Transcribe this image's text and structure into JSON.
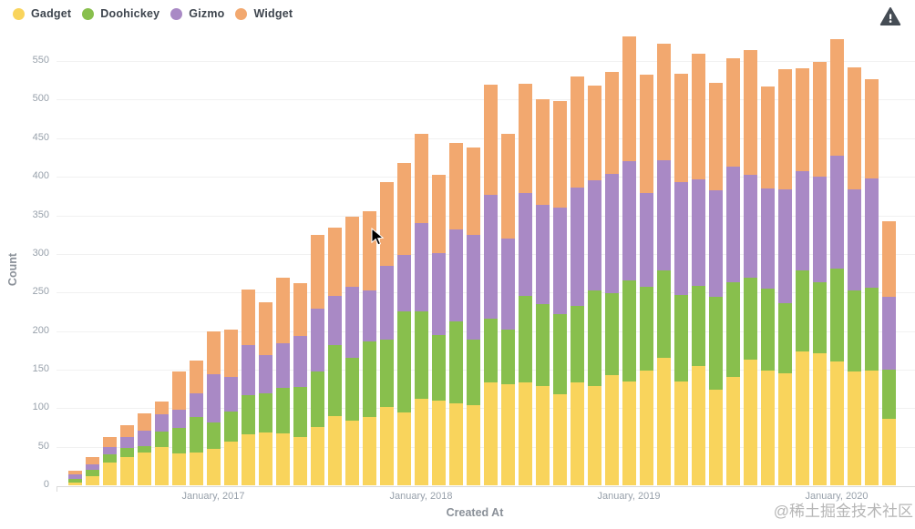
{
  "legend": {
    "items": [
      {
        "label": "Gadget",
        "color": "#F9D45C"
      },
      {
        "label": "Doohickey",
        "color": "#88BF4D"
      },
      {
        "label": "Gizmo",
        "color": "#A989C5"
      },
      {
        "label": "Widget",
        "color": "#F2A86F"
      }
    ]
  },
  "header": {
    "warning_icon": "alert-triangle",
    "warning_color": "#454C54"
  },
  "watermark": "@稀土掘金技术社区",
  "chart_data": {
    "type": "bar",
    "stacked": true,
    "title": "",
    "xlabel": "Created At",
    "ylabel": "Count",
    "ylim": [
      0,
      583
    ],
    "yticks": [
      0,
      50,
      100,
      150,
      200,
      250,
      300,
      350,
      400,
      450,
      500,
      550
    ],
    "grid": "faint-horizontal",
    "legend_position": "top-left",
    "categories": [
      "2016-05",
      "2016-06",
      "2016-07",
      "2016-08",
      "2016-09",
      "2016-10",
      "2016-11",
      "2016-12",
      "2017-01",
      "2017-02",
      "2017-03",
      "2017-04",
      "2017-05",
      "2017-06",
      "2017-07",
      "2017-08",
      "2017-09",
      "2017-10",
      "2017-11",
      "2017-12",
      "2018-01",
      "2018-02",
      "2018-03",
      "2018-04",
      "2018-05",
      "2018-06",
      "2018-07",
      "2018-08",
      "2018-09",
      "2018-10",
      "2018-11",
      "2018-12",
      "2019-01",
      "2019-02",
      "2019-03",
      "2019-04",
      "2019-05",
      "2019-06",
      "2019-07",
      "2019-08",
      "2019-09",
      "2019-10",
      "2019-11",
      "2019-12",
      "2020-01",
      "2020-02",
      "2020-03",
      "2020-04"
    ],
    "x_tick_labels": [
      "January, 2017",
      "January, 2018",
      "January, 2019",
      "January, 2020"
    ],
    "x_tick_indices": [
      8,
      20,
      32,
      44
    ],
    "series": [
      {
        "name": "Gadget",
        "color": "#F9D45C",
        "values": [
          3,
          12,
          29,
          37,
          42,
          50,
          41,
          43,
          47,
          57,
          66,
          68,
          67,
          63,
          76,
          90,
          84,
          89,
          102,
          94,
          112,
          110,
          106,
          104,
          133,
          131,
          133,
          129,
          118,
          133,
          129,
          143,
          135,
          149,
          165,
          135,
          155,
          124,
          141,
          163,
          149,
          145,
          173,
          171,
          161,
          147,
          149,
          86
        ]
      },
      {
        "name": "Doohickey",
        "color": "#88BF4D",
        "values": [
          5,
          8,
          11,
          11,
          9,
          20,
          33,
          45,
          35,
          39,
          51,
          51,
          59,
          64,
          71,
          92,
          81,
          97,
          87,
          132,
          114,
          85,
          106,
          85,
          83,
          71,
          112,
          106,
          104,
          100,
          124,
          106,
          130,
          108,
          114,
          112,
          104,
          120,
          122,
          106,
          106,
          91,
          106,
          92,
          120,
          106,
          107,
          64
        ]
      },
      {
        "name": "Gizmo",
        "color": "#A989C5",
        "values": [
          6,
          7,
          10,
          14,
          20,
          22,
          24,
          31,
          62,
          45,
          65,
          50,
          58,
          67,
          82,
          64,
          92,
          66,
          96,
          73,
          114,
          106,
          120,
          136,
          161,
          118,
          134,
          128,
          138,
          153,
          142,
          155,
          155,
          122,
          142,
          146,
          138,
          138,
          150,
          134,
          130,
          148,
          128,
          137,
          146,
          130,
          142,
          94
        ]
      },
      {
        "name": "Widget",
        "color": "#F2A86F",
        "values": [
          5,
          10,
          13,
          16,
          22,
          17,
          50,
          43,
          56,
          61,
          72,
          68,
          85,
          68,
          96,
          88,
          91,
          103,
          108,
          119,
          115,
          102,
          112,
          113,
          142,
          135,
          142,
          137,
          138,
          144,
          123,
          132,
          162,
          153,
          151,
          140,
          163,
          140,
          141,
          161,
          132,
          155,
          134,
          149,
          151,
          159,
          128,
          98
        ]
      }
    ]
  }
}
